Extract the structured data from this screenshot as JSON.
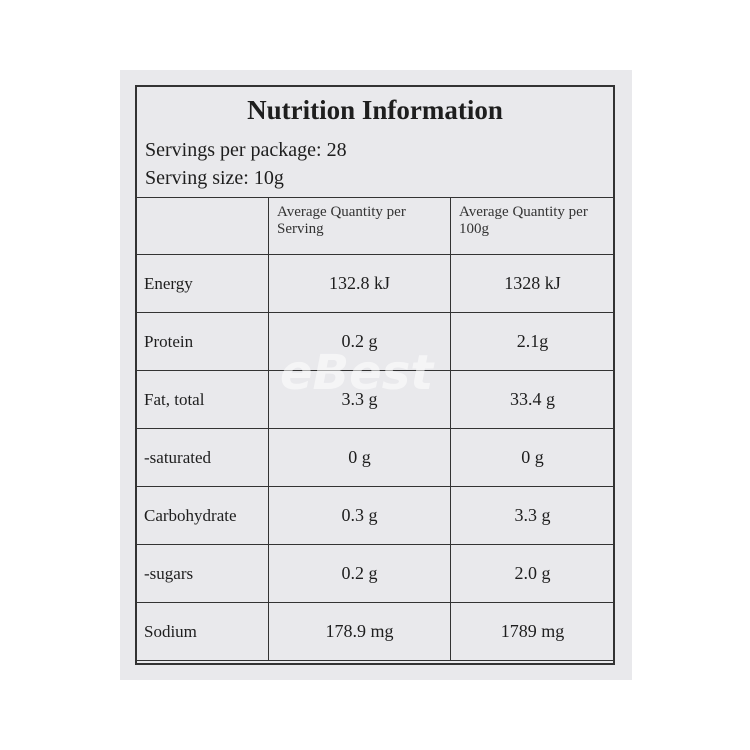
{
  "header": {
    "title": "Nutrition Information",
    "servings": "Servings per package: 28",
    "serving_size": "Serving size: 10g"
  },
  "table": {
    "columns": [
      "Average Quantity per Serving",
      "Average Quantity per 100g"
    ],
    "rows": [
      [
        "Energy",
        "132.8 kJ",
        "1328 kJ"
      ],
      [
        "Protein",
        "0.2 g",
        "2.1g"
      ],
      [
        "Fat, total",
        "3.3 g",
        "33.4 g"
      ],
      [
        "-saturated",
        "0 g",
        "0 g"
      ],
      [
        "Carbohydrate",
        "0.3 g",
        "3.3 g"
      ],
      [
        "-sugars",
        "0.2 g",
        "2.0 g"
      ],
      [
        "Sodium",
        "178.9 mg",
        "1789 mg"
      ]
    ]
  },
  "watermark": "eBest"
}
